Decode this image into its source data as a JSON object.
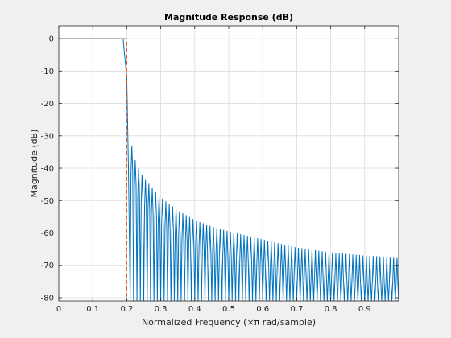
{
  "figure": {
    "background": "#f0f0f0"
  },
  "chart_data": {
    "type": "line",
    "title": "Magnitude Response (dB)",
    "xlabel": "Normalized Frequency (×π rad/sample)",
    "ylabel": "Magnitude (dB)",
    "xlim": [
      0,
      1.0
    ],
    "ylim": [
      -81,
      4
    ],
    "xticks": [
      0,
      0.1,
      0.2,
      0.3,
      0.4,
      0.5,
      0.6,
      0.7,
      0.8,
      0.9
    ],
    "xtick_labels": [
      "0",
      "0.1",
      "0.2",
      "0.3",
      "0.4",
      "0.5",
      "0.6",
      "0.7",
      "0.8",
      "0.9"
    ],
    "yticks": [
      0,
      -10,
      -20,
      -30,
      -40,
      -50,
      -60,
      -70,
      -80
    ],
    "ytick_labels": [
      "0",
      "-10",
      "-20",
      "-30",
      "-40",
      "-50",
      "-60",
      "-70",
      "-80"
    ],
    "grid": true,
    "series": [
      {
        "style": "solid",
        "color": "#0072bd",
        "description_points": {
          "passband": {
            "x": [
              0,
              0.19
            ],
            "y": [
              0,
              0
            ]
          },
          "transition": {
            "x": [
              0.19,
              0.2,
              0.205,
              0.21
            ],
            "y": [
              -1,
              -12,
              -40,
              -80
            ]
          },
          "sidelobe_peaks": {
            "x": [
              0.215,
              0.22,
              0.23,
              0.24,
              0.25,
              0.3,
              0.35,
              0.4,
              0.45,
              0.5,
              0.6,
              0.7,
              0.8,
              0.9,
              1.0
            ],
            "y": [
              -33,
              -36,
              -39,
              -41,
              -43,
              -49,
              -53,
              -56,
              -58,
              -59.5,
              -62,
              -64.5,
              -66,
              -67,
              -67.5
            ]
          },
          "sidelobe_spacing": 0.01,
          "null_floor": -81
        }
      },
      {
        "style": "dashed",
        "color": "#d95319",
        "x": [
          0,
          0.2,
          0.2,
          1.0
        ],
        "y": [
          0,
          0,
          -81,
          -81
        ]
      }
    ]
  }
}
